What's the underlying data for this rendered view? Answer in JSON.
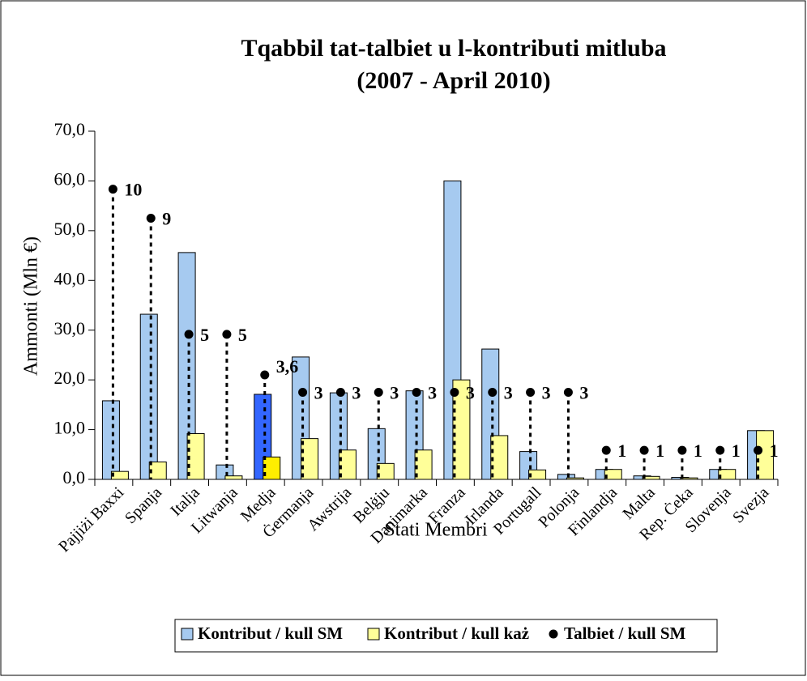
{
  "chart_data": {
    "type": "bar",
    "title": [
      "Tqabbil tat-talbiet u l-kontributi mitluba",
      "(2007 - April 2010)"
    ],
    "y_label": "Ammonti (Mln €)",
    "x_label": "Stati Membri",
    "categories": [
      "Pajjiżi Baxxi",
      "Spanja",
      "Italja",
      "Litwanja",
      "Medja",
      "Ġermanja",
      "Awstrija",
      "Belġju",
      "Danimarka",
      "Franza",
      "Irlanda",
      "Portugall",
      "Polonja",
      "Finlandja",
      "Malta",
      "Rep. Ċeka",
      "Slovenja",
      "Svezja"
    ],
    "series": [
      {
        "name": "Kontribut / kull SM",
        "type": "bar",
        "colors": [
          "#a6caf0",
          "#a6caf0",
          "#a6caf0",
          "#a6caf0",
          "#3366ff",
          "#a6caf0",
          "#a6caf0",
          "#a6caf0",
          "#a6caf0",
          "#a6caf0",
          "#a6caf0",
          "#a6caf0",
          "#a6caf0",
          "#a6caf0",
          "#a6caf0",
          "#a6caf0",
          "#a6caf0",
          "#a6caf0"
        ],
        "values": [
          15.8,
          33.2,
          45.6,
          2.9,
          17.1,
          24.6,
          17.4,
          10.2,
          17.8,
          60.0,
          26.2,
          5.6,
          1.0,
          2.0,
          0.7,
          0.4,
          2.0,
          9.8
        ]
      },
      {
        "name": "Kontribut / kull każ",
        "type": "bar",
        "colors": [
          "#ffff99",
          "#ffff99",
          "#ffff99",
          "#ffff99",
          "#ffee00",
          "#ffff99",
          "#ffff99",
          "#ffff99",
          "#ffff99",
          "#ffff99",
          "#ffff99",
          "#ffff99",
          "#ffff99",
          "#ffff99",
          "#ffff99",
          "#ffff99",
          "#ffff99",
          "#ffff99"
        ],
        "values": [
          1.6,
          3.5,
          9.2,
          0.7,
          4.5,
          8.2,
          5.9,
          3.2,
          5.9,
          20.0,
          8.8,
          1.9,
          0.3,
          2.0,
          0.6,
          0.3,
          2.0,
          9.8
        ]
      },
      {
        "name": "Talbiet / kull SM",
        "type": "dot",
        "axis": "y2",
        "color": "#000000",
        "values": [
          10,
          9,
          5,
          5,
          3.6,
          3,
          3,
          3,
          3,
          3,
          3,
          3,
          3,
          1,
          1,
          1,
          1,
          1
        ],
        "value_labels": [
          "10",
          "9",
          "5",
          "5",
          "3,6",
          "3",
          "3",
          "3",
          "3",
          "3",
          "3",
          "3",
          "3",
          "1",
          "1",
          "1",
          "1",
          "1"
        ]
      }
    ],
    "ylim": [
      0,
      70
    ],
    "yticks": [
      {
        "value": 0,
        "label": "0,0"
      },
      {
        "value": 10,
        "label": "10,0"
      },
      {
        "value": 20,
        "label": "20,0"
      },
      {
        "value": 30,
        "label": "30,0"
      },
      {
        "value": 40,
        "label": "40,0"
      },
      {
        "value": 50,
        "label": "50,0"
      },
      {
        "value": 60,
        "label": "60,0"
      },
      {
        "value": 70,
        "label": "70,0"
      }
    ],
    "y2lim": [
      0,
      12
    ],
    "legend": "bottom"
  }
}
